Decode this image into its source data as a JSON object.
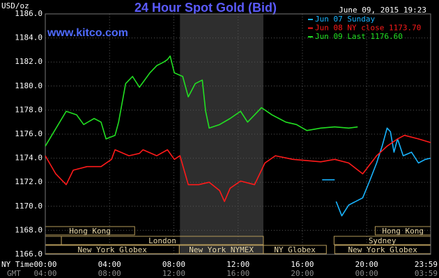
{
  "chart_data": {
    "type": "line",
    "title": "24 Hour Spot Gold (Bid)",
    "y_label": "USD/oz",
    "timestamp": "June 09, 2015 19:23",
    "site": "www.kitco.com",
    "x_row_label": "NY Time",
    "x2_row_label": "GMT",
    "xlim": [
      0,
      23.98
    ],
    "xticks": [
      {
        "value": 0,
        "label": "00:00"
      },
      {
        "value": 4,
        "label": "04:00"
      },
      {
        "value": 8,
        "label": "08:00"
      },
      {
        "value": 12,
        "label": "12:00"
      },
      {
        "value": 16,
        "label": "16:00"
      },
      {
        "value": 20,
        "label": "20:00"
      },
      {
        "value": 23.98,
        "label": "23:59"
      }
    ],
    "gmt_labels": [
      "04:00",
      "08:00",
      "12:00",
      "16:00",
      "20:00",
      "00:00",
      "03:59"
    ],
    "ylim": [
      1166,
      1186
    ],
    "yticks": [
      {
        "value": 1166,
        "label": "1166.0"
      },
      {
        "value": 1168,
        "label": "1168.0"
      },
      {
        "value": 1170,
        "label": "1170.0"
      },
      {
        "value": 1172,
        "label": "1172.0"
      },
      {
        "value": 1174,
        "label": "1174.0"
      },
      {
        "value": 1176,
        "label": "1176.0"
      },
      {
        "value": 1178,
        "label": "1178.0"
      },
      {
        "value": 1180,
        "label": "1180.0"
      },
      {
        "value": 1182,
        "label": "1182.0"
      },
      {
        "value": 1184,
        "label": "1184.0"
      },
      {
        "value": 1186,
        "label": "1186.0"
      }
    ],
    "grid": true,
    "shade": [
      8.38,
      13.57
    ],
    "sessions": [
      {
        "label": "Hong Kong",
        "start": 0,
        "end": 5.56,
        "row": 0
      },
      {
        "label": "Hong Kong",
        "start": 20.53,
        "end": 23.98,
        "row": 0
      },
      {
        "label": null,
        "start": 0,
        "end": 1.0,
        "row": 1
      },
      {
        "label": "London",
        "start": 1.0,
        "end": 13.57,
        "row": 1
      },
      {
        "label": "Sydney",
        "start": 17.97,
        "end": 23.98,
        "row": 1
      },
      {
        "label": "New York Globex",
        "start": 0,
        "end": 8.34,
        "row": 2
      },
      {
        "label": "New York NYMEX",
        "start": 8.34,
        "end": 13.57,
        "row": 2
      },
      {
        "label": "NY Globex",
        "start": 13.57,
        "end": 17.49,
        "row": 2
      },
      {
        "label": "New York Globex",
        "start": 18.01,
        "end": 23.98,
        "row": 2
      }
    ],
    "series": [
      {
        "name": "Jun 07 Sunday",
        "color": "#19b4ff",
        "x": [
          17.23,
          18.01,
          null,
          18.1,
          18.45,
          18.88,
          19.31,
          19.75,
          20.18,
          20.62,
          20.96,
          21.27,
          21.48,
          21.7,
          21.92,
          22.27,
          22.79,
          23.22,
          23.65,
          23.98
        ],
        "values": [
          1172.2,
          1172.2,
          null,
          1170.4,
          1169.2,
          1170.1,
          1170.4,
          1170.7,
          1172.1,
          1173.6,
          1175.0,
          1176.5,
          1176.2,
          1174.5,
          1175.6,
          1174.2,
          1174.5,
          1173.6,
          1173.9,
          1174.0
        ]
      },
      {
        "name": "Jun 08 NY close 1173.70",
        "color": "#ff1a1a",
        "x": [
          0,
          0.65,
          1.3,
          1.74,
          2.6,
          3.47,
          4.12,
          4.34,
          5.21,
          5.86,
          6.08,
          6.94,
          7.6,
          8.03,
          8.38,
          8.9,
          9.55,
          10.2,
          10.85,
          11.15,
          11.5,
          12.15,
          13.02,
          13.67,
          14.32,
          15.41,
          17.14,
          18.01,
          18.88,
          19.75,
          20.62,
          21.27,
          21.92,
          22.35,
          23.22,
          23.98
        ],
        "values": [
          1174.2,
          1172.7,
          1171.8,
          1173.0,
          1173.3,
          1173.3,
          1173.9,
          1174.7,
          1174.2,
          1174.4,
          1174.7,
          1174.2,
          1174.7,
          1173.9,
          1174.2,
          1171.8,
          1171.8,
          1172.0,
          1171.3,
          1170.4,
          1171.5,
          1172.1,
          1171.8,
          1173.6,
          1174.2,
          1173.9,
          1173.7,
          1173.9,
          1173.6,
          1172.7,
          1174.2,
          1175.0,
          1175.6,
          1175.9,
          1175.6,
          1175.3
        ]
      },
      {
        "name": "Jun 09 Last 1176.60",
        "color": "#22e022",
        "x": [
          0,
          1.3,
          1.95,
          2.39,
          3.04,
          3.47,
          3.78,
          4.34,
          4.56,
          5.0,
          5.43,
          5.86,
          6.51,
          6.94,
          7.38,
          7.6,
          7.77,
          8.03,
          8.55,
          8.9,
          9.33,
          9.77,
          9.98,
          10.2,
          10.85,
          11.5,
          12.15,
          12.59,
          13.02,
          13.45,
          14.11,
          14.54,
          14.97,
          15.63,
          16.28,
          17.14,
          18.01,
          18.88,
          19.44
        ],
        "values": [
          1175.0,
          1177.9,
          1177.6,
          1176.8,
          1177.3,
          1177.0,
          1175.6,
          1175.9,
          1177.0,
          1180.2,
          1180.8,
          1179.9,
          1181.1,
          1181.7,
          1182.0,
          1182.2,
          1182.5,
          1181.1,
          1180.8,
          1179.1,
          1180.2,
          1180.5,
          1177.9,
          1176.5,
          1176.8,
          1177.3,
          1177.9,
          1177.0,
          1177.6,
          1178.2,
          1177.6,
          1177.3,
          1177.0,
          1176.8,
          1176.3,
          1176.5,
          1176.6,
          1176.5,
          1176.6
        ]
      }
    ]
  }
}
